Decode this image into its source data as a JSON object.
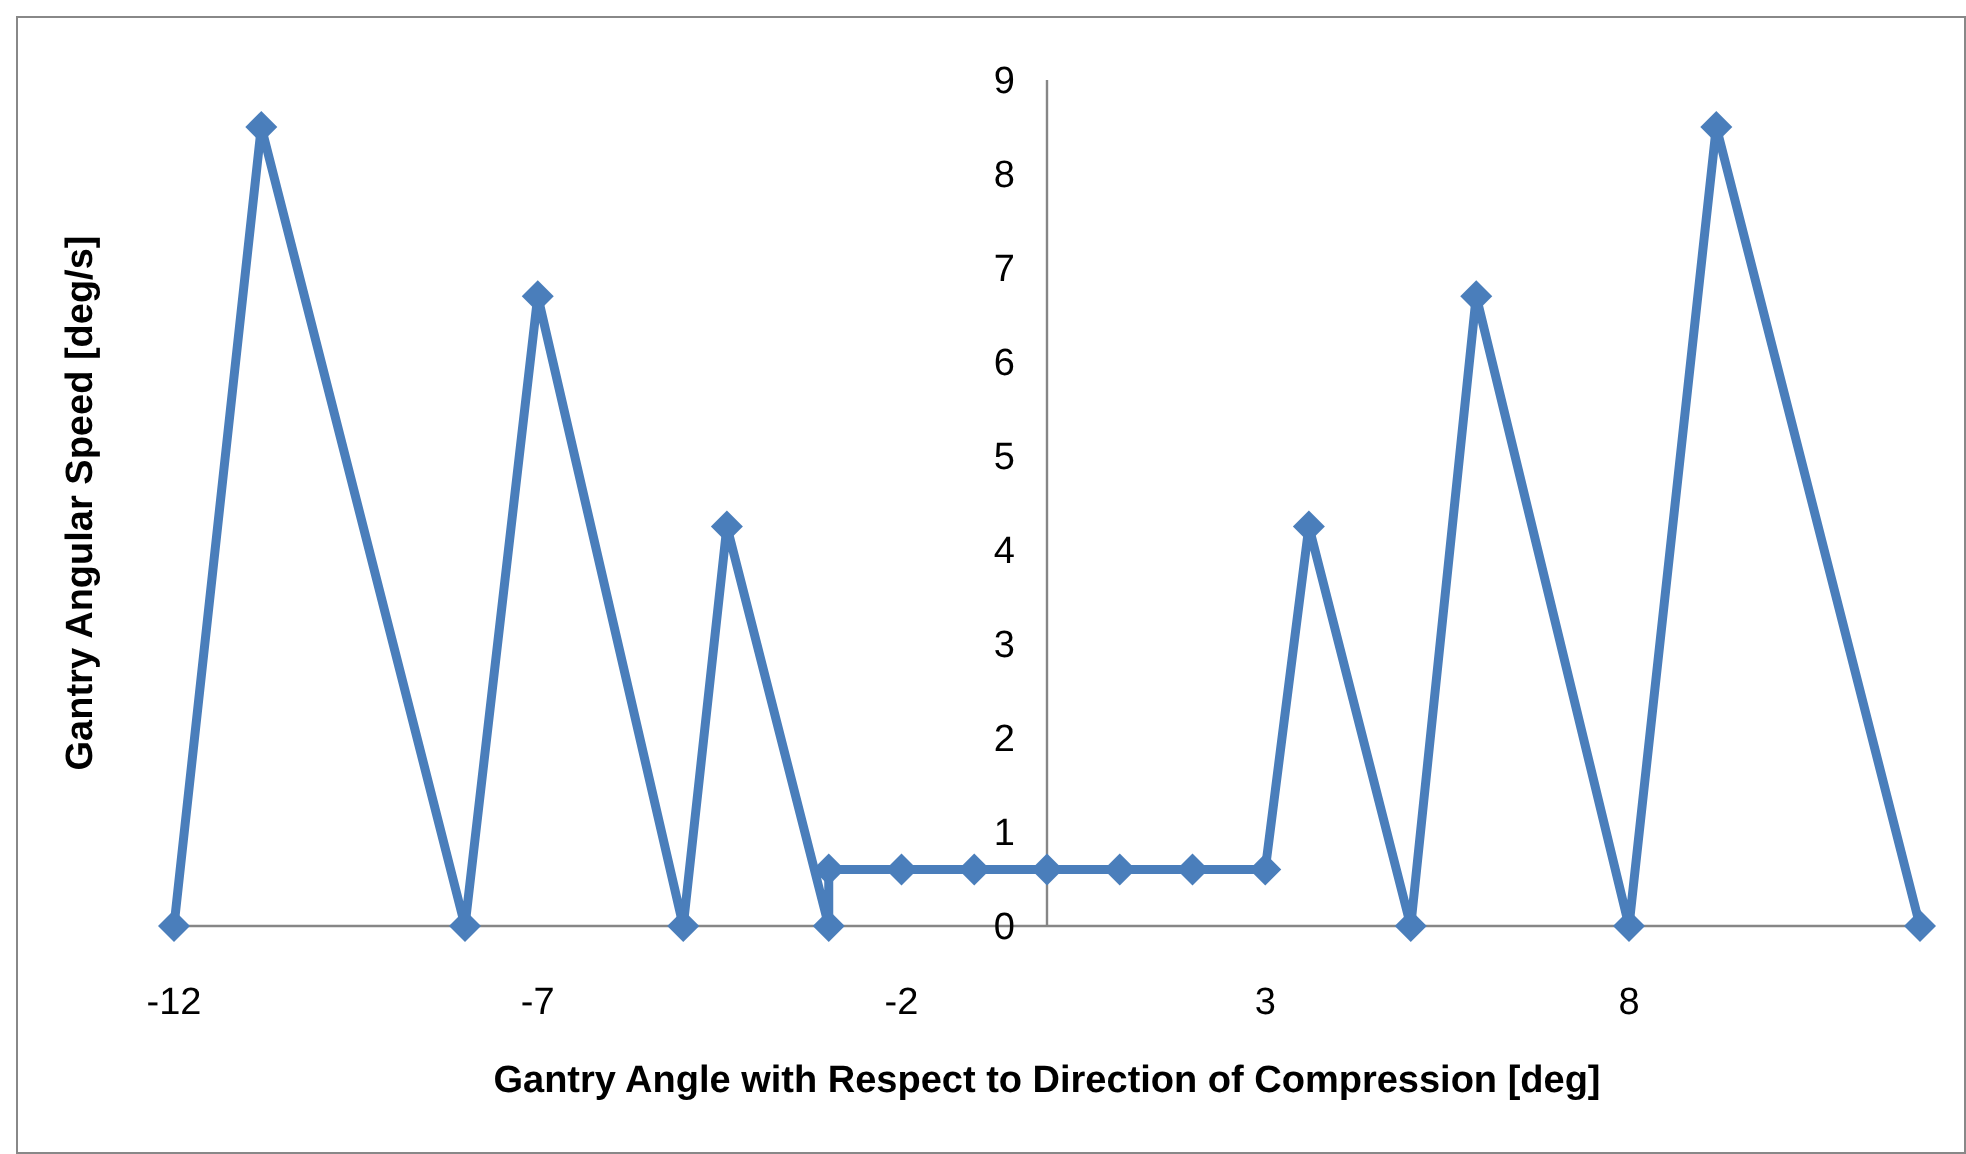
{
  "chart_data": {
    "type": "line",
    "xlabel": "Gantry Angle with Respect to Direction of Compression [deg]",
    "ylabel": "Gantry Angular Speed [deg/s]",
    "x": [
      -12,
      -10.8,
      -8,
      -7,
      -5,
      -4.4,
      -3,
      -3,
      -2,
      -1,
      0,
      1,
      2,
      3,
      3.6,
      5,
      5.9,
      8,
      9.2,
      12
    ],
    "series": [
      {
        "color": "#4a7ebb",
        "values": [
          0,
          8.5,
          0,
          6.7,
          0,
          4.25,
          0,
          0.6,
          0.6,
          0.6,
          0.6,
          0.6,
          0.6,
          0.6,
          4.25,
          0,
          6.7,
          0,
          8.5,
          0
        ]
      }
    ],
    "xlim": [
      -12,
      12
    ],
    "xticks": [
      -12,
      -7,
      -2,
      3,
      8
    ],
    "ylim": [
      0,
      9
    ],
    "yticks": [
      0,
      1,
      2,
      3,
      4,
      5,
      6,
      7,
      8,
      9
    ],
    "grid": false,
    "marker": "diamond",
    "line_style": "solid"
  }
}
